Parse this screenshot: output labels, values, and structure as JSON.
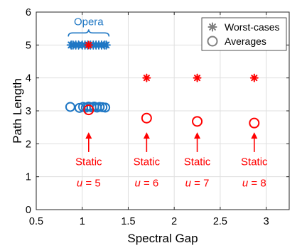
{
  "chart_data": {
    "type": "scatter",
    "xlabel": "Spectral Gap",
    "ylabel": "Path Length",
    "xlim": [
      0.5,
      3.25
    ],
    "ylim": [
      0,
      6
    ],
    "xticks": [
      "0.5",
      "1",
      "1.5",
      "2",
      "2.5",
      "3"
    ],
    "xtick_values": [
      0.5,
      1,
      1.5,
      2,
      2.5,
      3
    ],
    "yticks": [
      "0",
      "1",
      "2",
      "3",
      "4",
      "5",
      "6"
    ],
    "ytick_values": [
      0,
      1,
      2,
      3,
      4,
      5,
      6
    ],
    "grid": true,
    "legend_position": "top-right",
    "legend": [
      {
        "label": "Worst-cases",
        "marker": "asterisk"
      },
      {
        "label": "Averages",
        "marker": "circle"
      }
    ],
    "colors": {
      "opera": "#1f77c4",
      "static": "#ff0000",
      "legend": "#808080"
    },
    "series": [
      {
        "name": "Opera",
        "group": "opera",
        "worst": {
          "x": [
            0.88,
            0.9,
            0.93,
            0.96,
            1.0,
            1.03,
            1.06,
            1.09,
            1.12,
            1.15,
            1.18,
            1.21,
            1.24,
            1.26
          ],
          "y": [
            5,
            5,
            5,
            5,
            5,
            5,
            5,
            5,
            5,
            5,
            5,
            5,
            5,
            5
          ]
        },
        "avg": {
          "x": [
            0.87,
            0.97,
            1.01,
            1.04,
            1.07,
            1.1,
            1.13,
            1.16,
            1.19,
            1.22,
            1.25
          ],
          "y": [
            3.12,
            3.09,
            3.12,
            3.1,
            3.13,
            3.11,
            3.13,
            3.1,
            3.12,
            3.11,
            3.1
          ]
        }
      },
      {
        "name": "Static",
        "group": "static",
        "worst": {
          "x": [
            1.07,
            1.7,
            2.25,
            2.87
          ],
          "y": [
            5,
            4,
            4,
            4
          ]
        },
        "avg": {
          "x": [
            1.07,
            1.7,
            2.25,
            2.87
          ],
          "y": [
            3.03,
            2.78,
            2.68,
            2.63
          ]
        }
      }
    ],
    "annotations": {
      "opera_label": "Opera",
      "static": [
        {
          "x": 1.07,
          "label": "Static",
          "u_var": "u",
          "u_eq": "= 5"
        },
        {
          "x": 1.7,
          "label": "Static",
          "u_var": "u",
          "u_eq": "= 6"
        },
        {
          "x": 2.25,
          "label": "Static",
          "u_var": "u",
          "u_eq": "= 7"
        },
        {
          "x": 2.87,
          "label": "Static",
          "u_var": "u",
          "u_eq": "= 8"
        }
      ]
    }
  }
}
